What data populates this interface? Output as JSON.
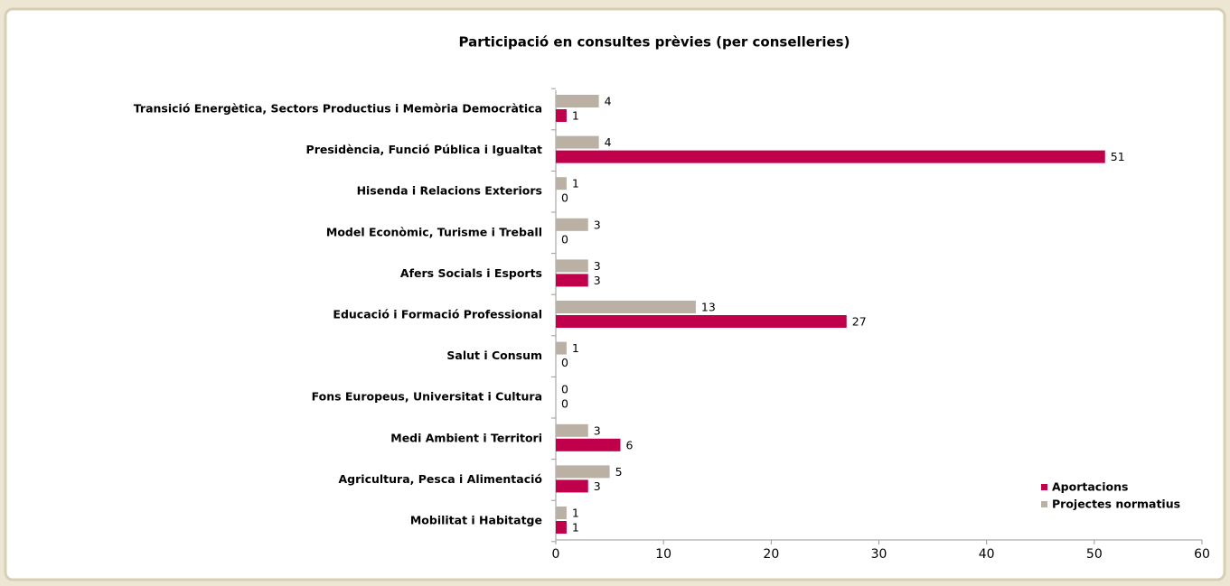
{
  "chart_data": {
    "type": "bar",
    "orientation": "horizontal",
    "title": "Participació en consultes prèvies (per conselleries)",
    "categories": [
      "Transició Energètica, Sectors Productius i Memòria Democràtica",
      "Presidència, Funció Pública i Igualtat",
      "Hisenda i Relacions Exteriors",
      "Model Econòmic, Turisme i Treball",
      "Afers Socials i Esports",
      "Educació i Formació Professional",
      "Salut i Consum",
      "Fons Europeus, Universitat i Cultura",
      "Medi Ambient i Territori",
      "Agricultura, Pesca i Alimentació",
      "Mobilitat i Habitatge"
    ],
    "series": [
      {
        "name": "Aportacions",
        "color": "#c0004a",
        "values": [
          1,
          51,
          0,
          0,
          3,
          27,
          0,
          0,
          6,
          3,
          1
        ]
      },
      {
        "name": "Projectes normatius",
        "color": "#bab0a4",
        "values": [
          4,
          4,
          1,
          3,
          3,
          13,
          1,
          0,
          3,
          5,
          1
        ]
      }
    ],
    "xlim": [
      0,
      60
    ],
    "xticks": [
      0,
      10,
      20,
      30,
      40,
      50,
      60
    ],
    "legend": "lower right"
  }
}
